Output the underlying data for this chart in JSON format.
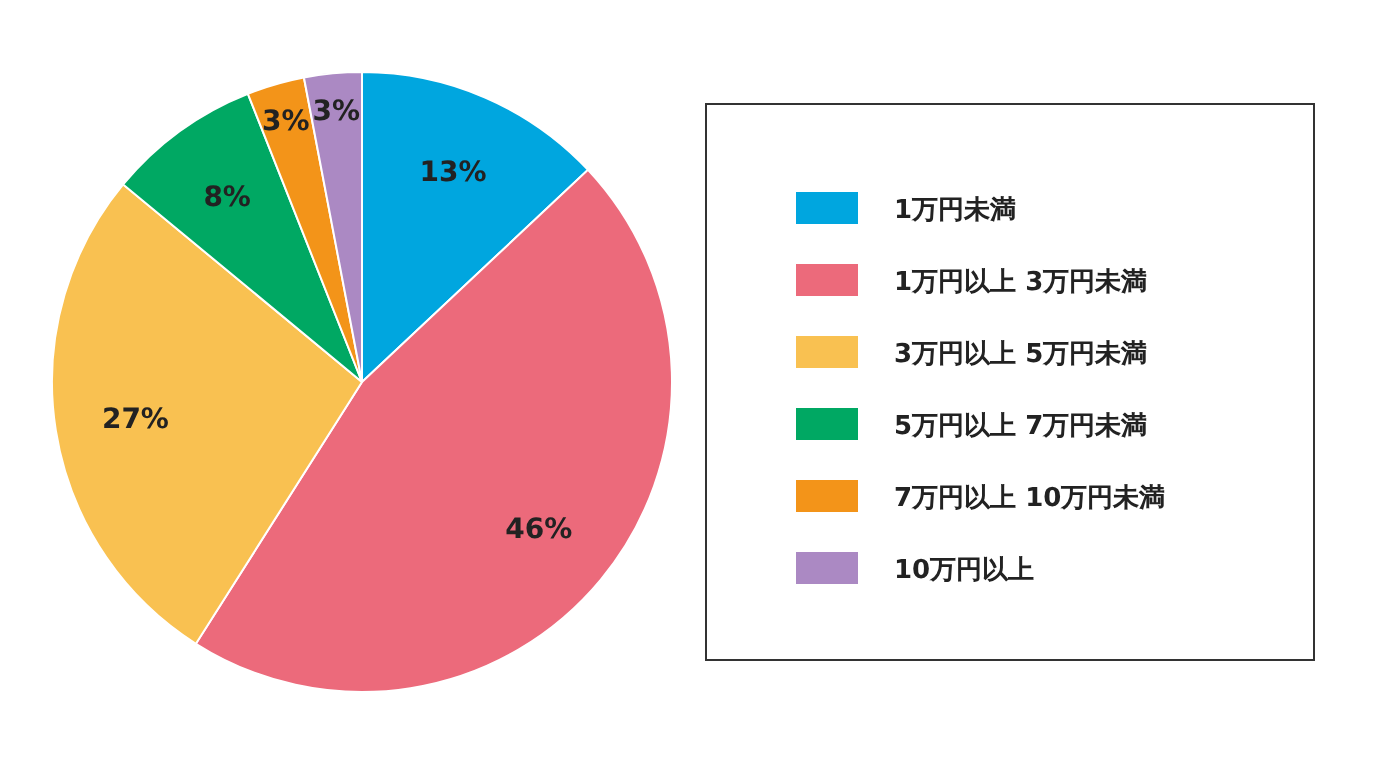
{
  "chart_data": {
    "type": "pie",
    "categories": [
      "1万円未満",
      "1万円以上 3万円未満",
      "3万円以上 5万円未満",
      "5万円以上 7万円未満",
      "7万円以上 10万円未満",
      "10万円以上"
    ],
    "values": [
      13,
      46,
      27,
      8,
      3,
      3
    ],
    "colors": [
      "#00a6df",
      "#ec6a7b",
      "#f9c151",
      "#00a863",
      "#f39419",
      "#ab89c3"
    ],
    "value_labels": [
      "13%",
      "46%",
      "27%",
      "8%",
      "3%",
      "3%"
    ],
    "legend": "right"
  }
}
